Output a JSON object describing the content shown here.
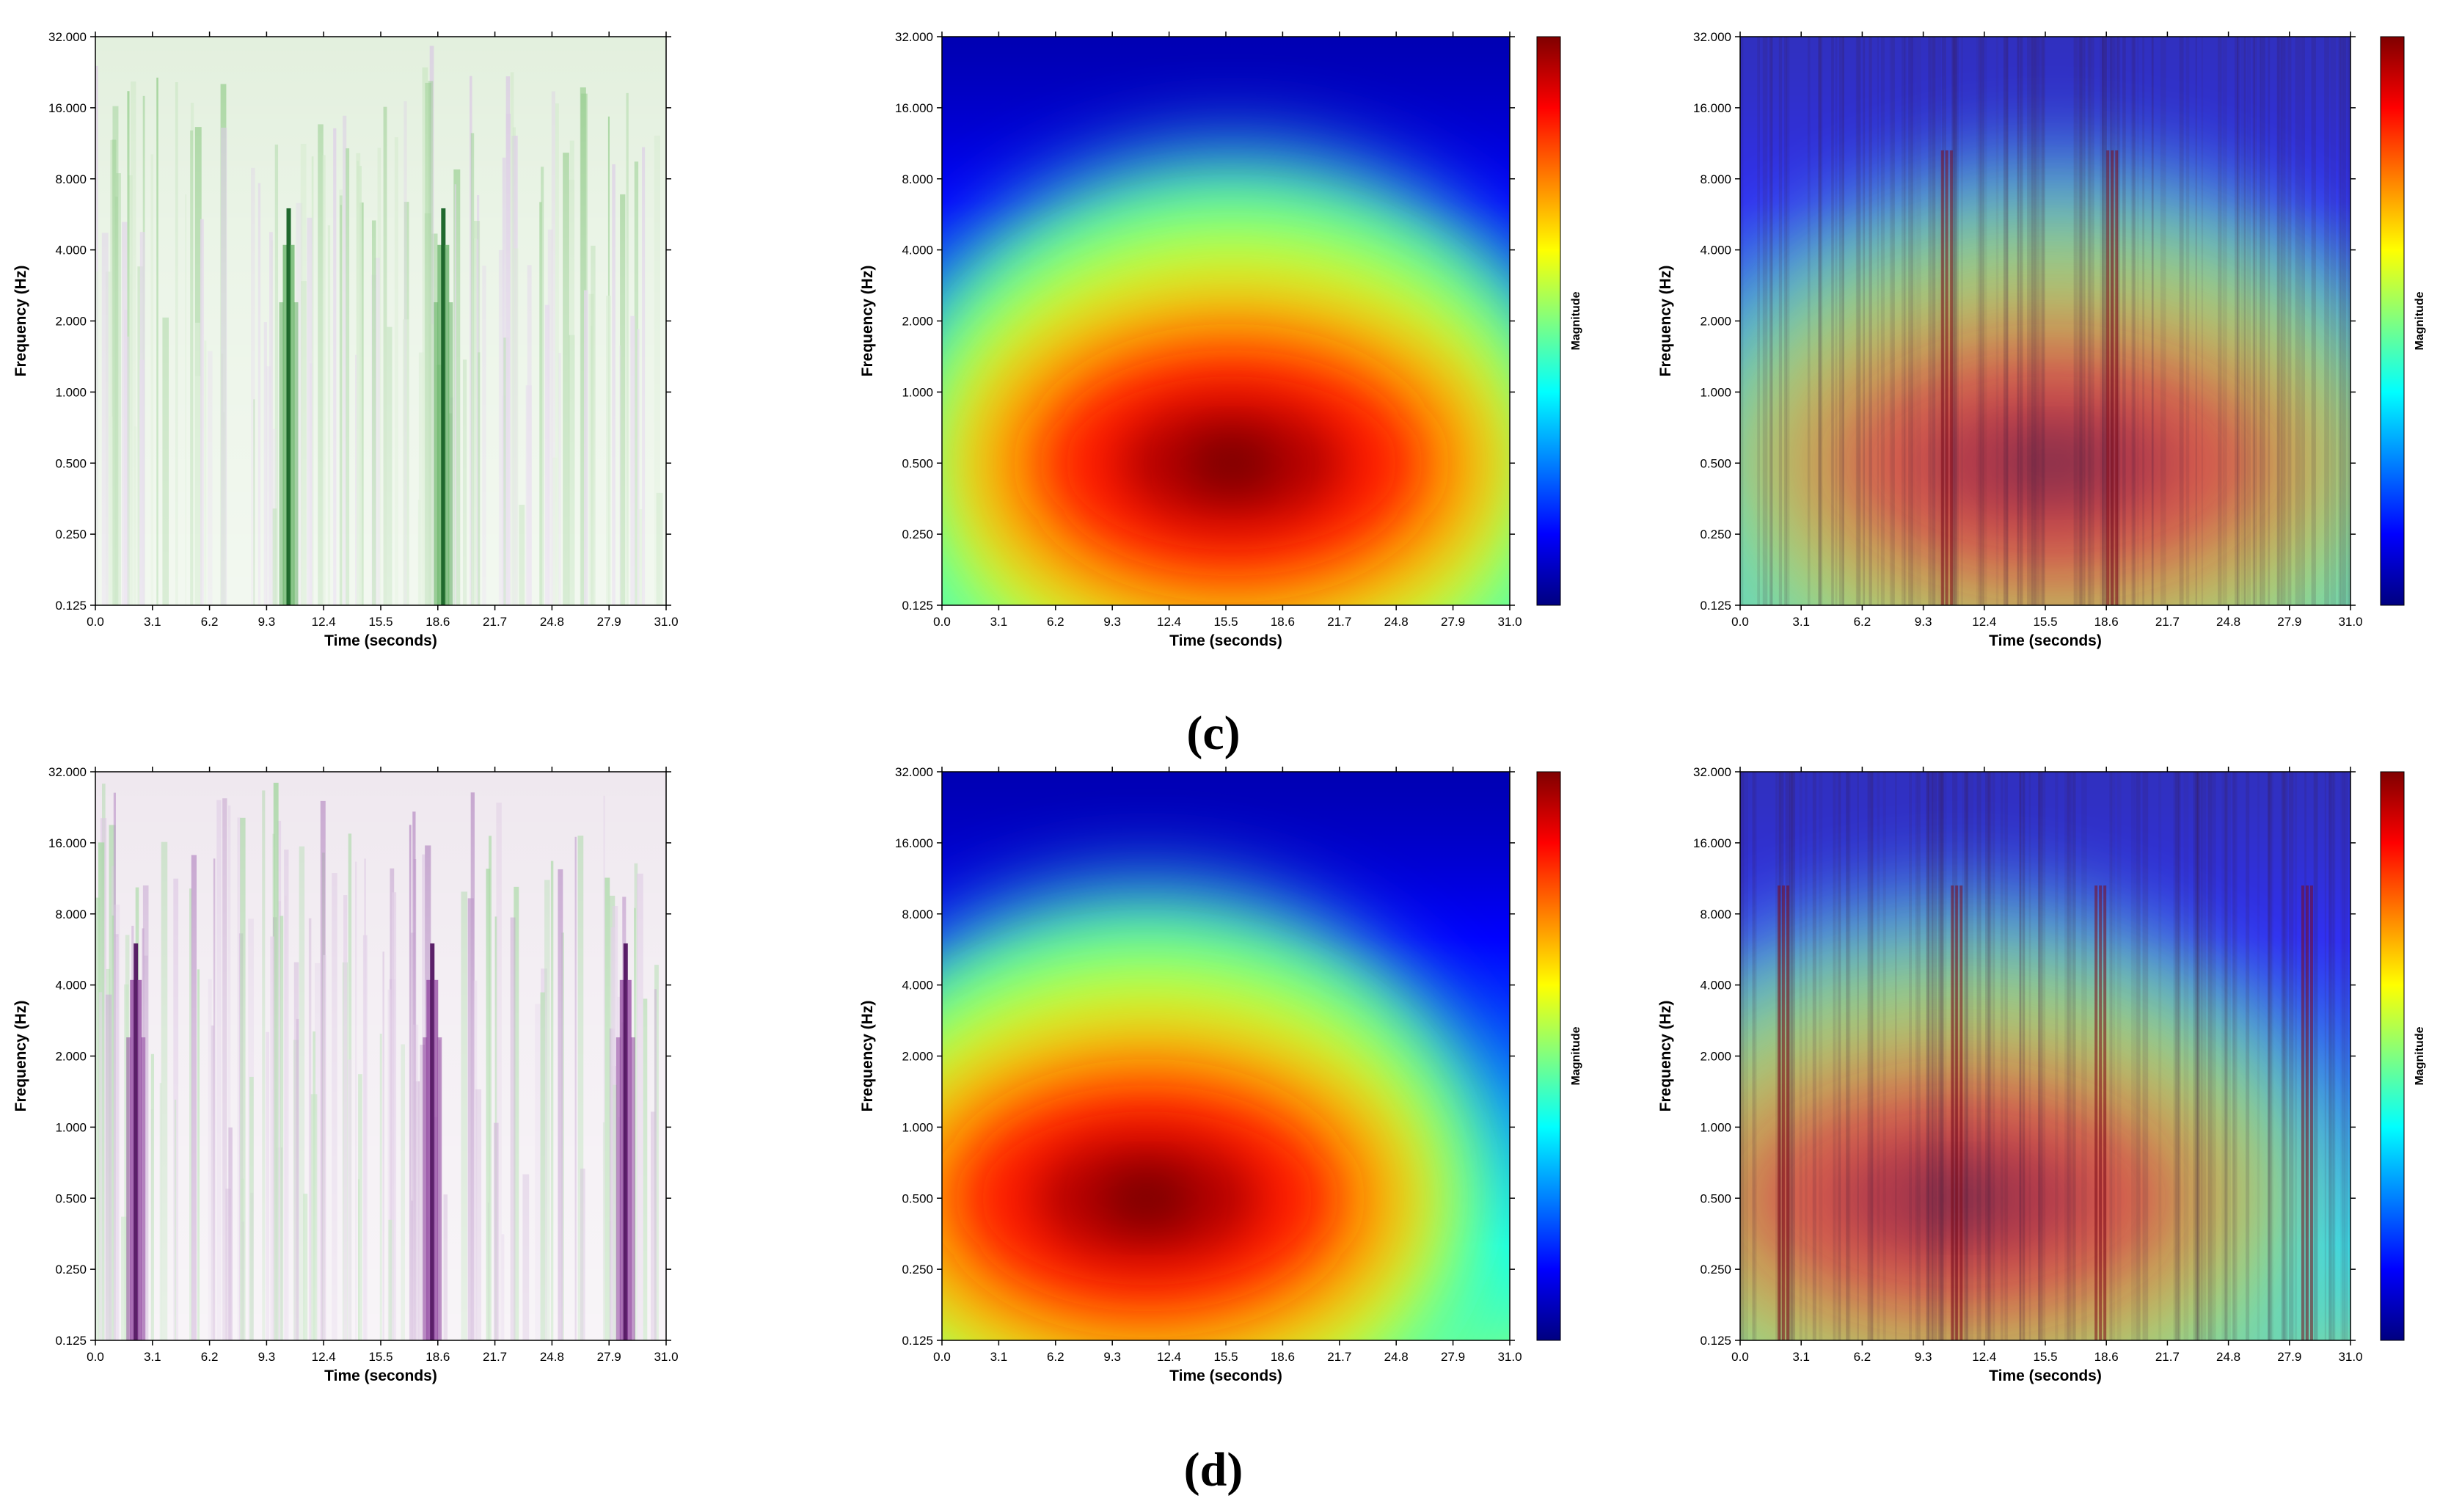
{
  "captions": {
    "c": "(c)",
    "d": "(d)"
  },
  "colors": {
    "green_strong": "#0a5a1a",
    "green_mid": "#5cae5c",
    "purple_strong": "#4a0a5a",
    "purple_light": "#e6dcea",
    "green_bg": "#e3f0de",
    "purple_bg": "#efe8ef"
  },
  "chart_data": [
    {
      "id": "c-left",
      "type": "heatmap",
      "variant": "wavelet-green",
      "title": "",
      "xlabel": "Time (seconds)",
      "ylabel": "Frequency (Hz)",
      "xlim": [
        0,
        31
      ],
      "ylim": [
        0.125,
        32
      ],
      "yscale": "log2",
      "x_ticks": [
        "0.0",
        "3.1",
        "6.2",
        "9.3",
        "12.4",
        "15.5",
        "18.6",
        "21.7",
        "24.8",
        "27.9",
        "31.0"
      ],
      "y_ticks": [
        "0.125",
        "0.250",
        "0.500",
        "1.000",
        "2.000",
        "4.000",
        "8.000",
        "16.000",
        "32.000"
      ],
      "strong_events_seconds": [
        10.5,
        18.9
      ]
    },
    {
      "id": "c-mid",
      "type": "heatmap",
      "variant": "jet-blob",
      "title": "",
      "xlabel": "Time (seconds)",
      "ylabel": "Frequency (Hz)",
      "xlim": [
        0,
        31
      ],
      "ylim": [
        0.125,
        32
      ],
      "yscale": "log2",
      "x_ticks": [
        "0.0",
        "3.1",
        "6.2",
        "9.3",
        "12.4",
        "15.5",
        "18.6",
        "21.7",
        "24.8",
        "27.9",
        "31.0"
      ],
      "y_ticks": [
        "0.125",
        "0.250",
        "0.500",
        "1.000",
        "2.000",
        "4.000",
        "8.000",
        "16.000",
        "32.000"
      ],
      "colorbar_label": "Magnitude",
      "peak": {
        "time": 15.8,
        "frequency": 0.4
      }
    },
    {
      "id": "c-right",
      "type": "heatmap",
      "variant": "overlay",
      "title": "",
      "xlabel": "Time (seconds)",
      "ylabel": "Frequency (Hz)",
      "xlim": [
        0,
        31
      ],
      "ylim": [
        0.125,
        32
      ],
      "yscale": "log2",
      "x_ticks": [
        "0.0",
        "3.1",
        "6.2",
        "9.3",
        "12.4",
        "15.5",
        "18.6",
        "21.7",
        "24.8",
        "27.9",
        "31.0"
      ],
      "y_ticks": [
        "0.125",
        "0.250",
        "0.500",
        "1.000",
        "2.000",
        "4.000",
        "8.000",
        "16.000",
        "32.000"
      ],
      "colorbar_label": "Magnitude",
      "peak": {
        "time": 15.8,
        "frequency": 0.4
      }
    },
    {
      "id": "d-left",
      "type": "heatmap",
      "variant": "wavelet-purple",
      "title": "",
      "xlabel": "Time (seconds)",
      "ylabel": "Frequency (Hz)",
      "xlim": [
        0,
        31
      ],
      "ylim": [
        0.125,
        32
      ],
      "yscale": "log2",
      "x_ticks": [
        "0.0",
        "3.1",
        "6.2",
        "9.3",
        "12.4",
        "15.5",
        "18.6",
        "21.7",
        "24.8",
        "27.9",
        "31.0"
      ],
      "y_ticks": [
        "0.125",
        "0.250",
        "0.500",
        "1.000",
        "2.000",
        "4.000",
        "8.000",
        "16.000",
        "32.000"
      ],
      "strong_events_seconds": [
        2.2,
        18.3,
        28.8
      ]
    },
    {
      "id": "d-mid",
      "type": "heatmap",
      "variant": "jet-blob",
      "title": "",
      "xlabel": "Time (seconds)",
      "ylabel": "Frequency (Hz)",
      "xlim": [
        0,
        31
      ],
      "ylim": [
        0.125,
        32
      ],
      "yscale": "log2",
      "x_ticks": [
        "0.0",
        "3.1",
        "6.2",
        "9.3",
        "12.4",
        "15.5",
        "18.6",
        "21.7",
        "24.8",
        "27.9",
        "31.0"
      ],
      "y_ticks": [
        "0.125",
        "0.250",
        "0.500",
        "1.000",
        "2.000",
        "4.000",
        "8.000",
        "16.000",
        "32.000"
      ],
      "colorbar_label": "Magnitude",
      "peak": {
        "time": 11.2,
        "frequency": 0.4
      }
    },
    {
      "id": "d-right",
      "type": "heatmap",
      "variant": "overlay",
      "title": "",
      "xlabel": "Time (seconds)",
      "ylabel": "Frequency (Hz)",
      "xlim": [
        0,
        31
      ],
      "ylim": [
        0.125,
        32
      ],
      "yscale": "log2",
      "x_ticks": [
        "0.0",
        "3.1",
        "6.2",
        "9.3",
        "12.4",
        "15.5",
        "18.6",
        "21.7",
        "24.8",
        "27.9",
        "31.0"
      ],
      "y_ticks": [
        "0.125",
        "0.250",
        "0.500",
        "1.000",
        "2.000",
        "4.000",
        "8.000",
        "16.000",
        "32.000"
      ],
      "colorbar_label": "Magnitude",
      "peak": {
        "time": 11.2,
        "frequency": 0.4
      }
    }
  ]
}
